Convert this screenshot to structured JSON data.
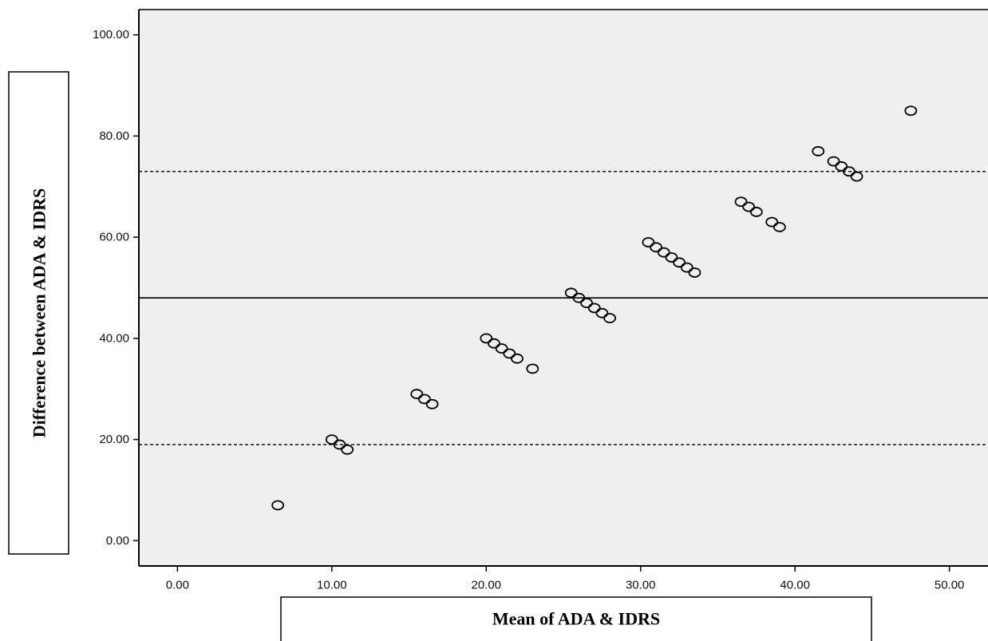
{
  "chart_data": {
    "type": "scatter",
    "title": "",
    "xlabel": "Mean of ADA & IDRS",
    "ylabel": "Difference between ADA & IDRS",
    "xlim": [
      -2.5,
      52.5
    ],
    "ylim": [
      -5,
      105
    ],
    "x_ticks": [
      "0.00",
      "10.00",
      "20.00",
      "30.00",
      "40.00",
      "50.00"
    ],
    "y_ticks": [
      "0.00",
      "20.00",
      "40.00",
      "60.00",
      "80.00",
      "100.00"
    ],
    "grid": false,
    "plot_background": "#efefef",
    "marker": "open-circle",
    "reference_lines": [
      {
        "value": 48,
        "style": "solid"
      },
      {
        "value": 73,
        "style": "dashed"
      },
      {
        "value": 19,
        "style": "dashed"
      }
    ],
    "series": [
      {
        "points": [
          [
            6.5,
            7
          ],
          [
            10,
            20
          ],
          [
            10.5,
            19
          ],
          [
            11,
            18
          ],
          [
            15.5,
            29
          ],
          [
            16,
            28
          ],
          [
            16.5,
            27
          ],
          [
            20,
            40
          ],
          [
            20.5,
            39
          ],
          [
            21,
            38
          ],
          [
            21.5,
            37
          ],
          [
            22,
            36
          ],
          [
            23,
            34
          ],
          [
            25.5,
            49
          ],
          [
            26,
            48
          ],
          [
            26.5,
            47
          ],
          [
            27,
            46
          ],
          [
            27.5,
            45
          ],
          [
            28,
            44
          ],
          [
            30.5,
            59
          ],
          [
            31,
            58
          ],
          [
            31.5,
            57
          ],
          [
            32,
            56
          ],
          [
            32.5,
            55
          ],
          [
            33,
            54
          ],
          [
            33.5,
            53
          ],
          [
            36.5,
            67
          ],
          [
            37,
            66
          ],
          [
            37.5,
            65
          ],
          [
            38.5,
            63
          ],
          [
            39,
            62
          ],
          [
            41.5,
            77
          ],
          [
            42.5,
            75
          ],
          [
            43,
            74
          ],
          [
            43.5,
            73
          ],
          [
            44,
            72
          ],
          [
            47.5,
            85
          ]
        ]
      }
    ]
  }
}
